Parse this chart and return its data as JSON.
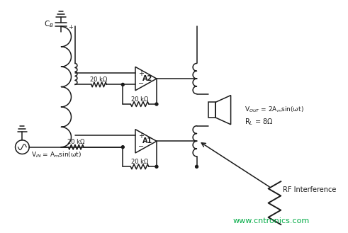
{
  "bg_color": "#ffffff",
  "line_color": "#1a1a1a",
  "text_color": "#1a1a1a",
  "green_color": "#00aa44",
  "watermark": "www.cntronics.com",
  "rf_label": "RF Interference",
  "vin_label": "V$_{IN}$ = A$_m$sin(ωt)",
  "r1_label": "20 kΩ",
  "r2_label": "20 kΩ",
  "r3_label": "20 kΩ",
  "r4_label": "20 kΩ",
  "rl_label": "R$_L$ = 8Ω",
  "vout_label": "V$_{OUT}$ = 2A$_m$sin(ωt)",
  "a1_label": "A1",
  "a2_label": "A2",
  "cb_label": "C$_B$"
}
